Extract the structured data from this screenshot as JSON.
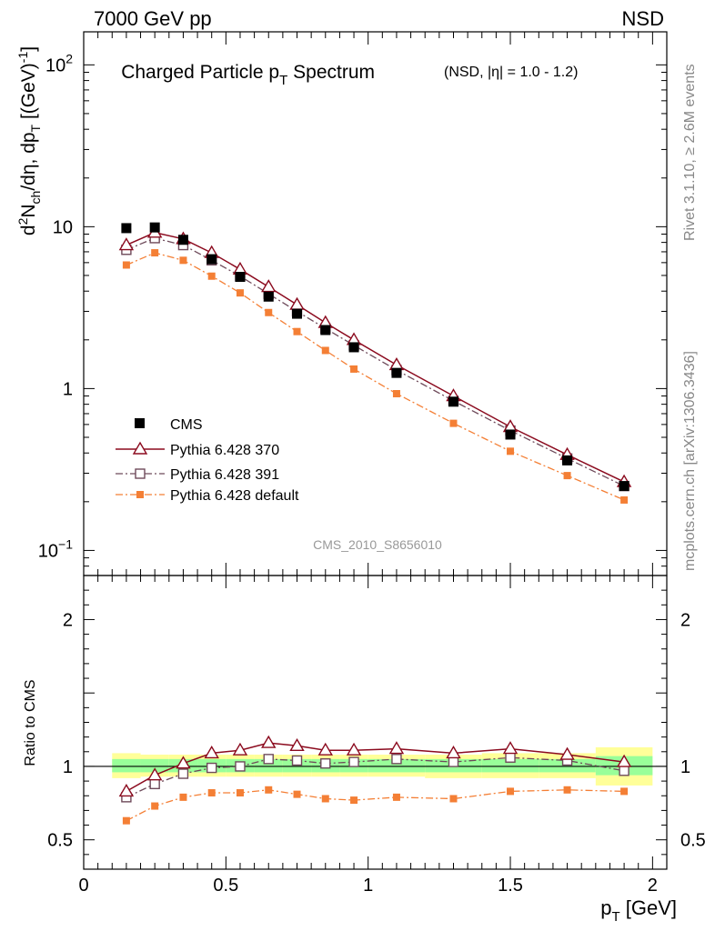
{
  "header": {
    "left_label": "7000 GeV pp",
    "right_label": "NSD"
  },
  "side_labels": {
    "rivet": "Rivet 3.1.10, ≥ 2.6M events",
    "mcplots": "mcplots.cern.ch [arXiv:1306.3436]"
  },
  "watermark": "CMS_2010_S8656010",
  "colors": {
    "cms": "#000000",
    "pythia_370": "#8b0a1e",
    "pythia_391": "#6e4a5a",
    "pythia_default": "#f47f35",
    "band_inner": "#99ff99",
    "band_outer": "#ffff99"
  },
  "chart_data": [
    {
      "type": "scatter",
      "panel": "main",
      "title": "Charged Particle p",
      "title_sub": "T",
      "title_after": " Spectrum",
      "title_small": "(NSD, |η| = 1.0 - 1.2)",
      "ylabel_parts": [
        "d",
        "2",
        "N",
        "ch",
        "/dη, dp",
        "T",
        " [(GeV)",
        "-1",
        "]"
      ],
      "yscale": "log",
      "ylim": [
        0.07,
        160
      ],
      "xlim": [
        0,
        2.05
      ],
      "ytick_labels": [
        {
          "value": 100,
          "base": "10",
          "exp": "2"
        },
        {
          "value": 10,
          "base": "10",
          "exp": ""
        },
        {
          "value": 1,
          "base": "1",
          "exp": ""
        },
        {
          "value": 0.1,
          "base": "10",
          "exp": "−1"
        }
      ],
      "legend_position": "bottom-left",
      "x": [
        0.15,
        0.25,
        0.35,
        0.45,
        0.55,
        0.65,
        0.75,
        0.85,
        0.95,
        1.1,
        1.3,
        1.5,
        1.7,
        1.9
      ],
      "series": [
        {
          "name": "CMS",
          "key": "cms",
          "marker": "filled-square",
          "line": "none",
          "values": [
            9.8,
            9.9,
            8.3,
            6.3,
            4.9,
            3.7,
            2.9,
            2.3,
            1.8,
            1.25,
            0.83,
            0.52,
            0.36,
            0.25
          ]
        },
        {
          "name": "Pythia 6.428 370",
          "key": "pythia_370",
          "marker": "open-triangle",
          "line": "solid",
          "values": [
            7.7,
            9.2,
            8.4,
            6.9,
            5.45,
            4.25,
            3.3,
            2.55,
            2.0,
            1.4,
            0.9,
            0.58,
            0.39,
            0.265
          ]
        },
        {
          "name": "Pythia 6.428 391",
          "key": "pythia_391",
          "marker": "open-square",
          "line": "dashdot",
          "values": [
            7.2,
            8.5,
            7.7,
            6.2,
            4.95,
            3.85,
            3.0,
            2.35,
            1.85,
            1.3,
            0.84,
            0.55,
            0.37,
            0.25
          ]
        },
        {
          "name": "Pythia 6.428 default",
          "key": "pythia_default",
          "marker": "filled-square-small",
          "line": "dashdot",
          "values": [
            5.8,
            6.9,
            6.2,
            4.95,
            3.9,
            2.95,
            2.25,
            1.72,
            1.32,
            0.93,
            0.61,
            0.41,
            0.29,
            0.205
          ]
        }
      ]
    },
    {
      "type": "scatter",
      "panel": "ratio",
      "ylabel": "Ratio to CMS",
      "xlabel_base": "p",
      "xlabel_sub": "T",
      "xlabel_unit": " [GeV]",
      "ylim": [
        0.3,
        2.3
      ],
      "xlim": [
        0,
        2.05
      ],
      "yticks": [
        2,
        1,
        0.5
      ],
      "ytick_labels": [
        "2",
        "1",
        "0.5"
      ],
      "xticks": [
        0,
        0.5,
        1,
        1.5,
        2
      ],
      "xtick_labels": [
        "0",
        "0.5",
        "1",
        "1.5",
        "2"
      ],
      "x": [
        0.15,
        0.25,
        0.35,
        0.45,
        0.55,
        0.65,
        0.75,
        0.85,
        0.95,
        1.1,
        1.3,
        1.5,
        1.7,
        1.9
      ],
      "bands": [
        {
          "x0": 0.1,
          "x1": 0.2,
          "outer": [
            0.92,
            1.09
          ],
          "inner": [
            0.96,
            1.05
          ]
        },
        {
          "x0": 0.2,
          "x1": 0.3,
          "outer": [
            0.93,
            1.08
          ],
          "inner": [
            0.96,
            1.05
          ]
        },
        {
          "x0": 0.3,
          "x1": 0.4,
          "outer": [
            0.93,
            1.08
          ],
          "inner": [
            0.96,
            1.05
          ]
        },
        {
          "x0": 0.4,
          "x1": 0.5,
          "outer": [
            0.93,
            1.08
          ],
          "inner": [
            0.96,
            1.05
          ]
        },
        {
          "x0": 0.5,
          "x1": 0.6,
          "outer": [
            0.93,
            1.08
          ],
          "inner": [
            0.96,
            1.05
          ]
        },
        {
          "x0": 0.6,
          "x1": 0.7,
          "outer": [
            0.93,
            1.08
          ],
          "inner": [
            0.96,
            1.05
          ]
        },
        {
          "x0": 0.7,
          "x1": 0.8,
          "outer": [
            0.93,
            1.08
          ],
          "inner": [
            0.96,
            1.05
          ]
        },
        {
          "x0": 0.8,
          "x1": 0.9,
          "outer": [
            0.93,
            1.08
          ],
          "inner": [
            0.96,
            1.05
          ]
        },
        {
          "x0": 0.9,
          "x1": 1.0,
          "outer": [
            0.93,
            1.08
          ],
          "inner": [
            0.96,
            1.05
          ]
        },
        {
          "x0": 1.0,
          "x1": 1.2,
          "outer": [
            0.93,
            1.08
          ],
          "inner": [
            0.96,
            1.05
          ]
        },
        {
          "x0": 1.2,
          "x1": 1.4,
          "outer": [
            0.92,
            1.08
          ],
          "inner": [
            0.96,
            1.05
          ]
        },
        {
          "x0": 1.4,
          "x1": 1.6,
          "outer": [
            0.92,
            1.09
          ],
          "inner": [
            0.96,
            1.05
          ]
        },
        {
          "x0": 1.6,
          "x1": 1.8,
          "outer": [
            0.92,
            1.09
          ],
          "inner": [
            0.96,
            1.05
          ]
        },
        {
          "x0": 1.8,
          "x1": 2.0,
          "outer": [
            0.87,
            1.13
          ],
          "inner": [
            0.94,
            1.07
          ]
        }
      ],
      "series": [
        {
          "name": "Pythia 6.428 370",
          "key": "pythia_370",
          "marker": "open-triangle",
          "line": "solid",
          "values": [
            0.83,
            0.94,
            1.02,
            1.09,
            1.11,
            1.16,
            1.14,
            1.11,
            1.11,
            1.12,
            1.09,
            1.12,
            1.08,
            1.03
          ]
        },
        {
          "name": "Pythia 6.428 391",
          "key": "pythia_391",
          "marker": "open-square",
          "line": "dashdot",
          "values": [
            0.79,
            0.88,
            0.95,
            0.99,
            1.0,
            1.05,
            1.04,
            1.02,
            1.03,
            1.05,
            1.03,
            1.06,
            1.04,
            0.97
          ]
        },
        {
          "name": "Pythia 6.428 default",
          "key": "pythia_default",
          "marker": "filled-square-small",
          "line": "dashdot",
          "values": [
            0.63,
            0.73,
            0.79,
            0.82,
            0.82,
            0.84,
            0.81,
            0.78,
            0.77,
            0.79,
            0.78,
            0.83,
            0.84,
            0.83
          ]
        }
      ]
    }
  ]
}
